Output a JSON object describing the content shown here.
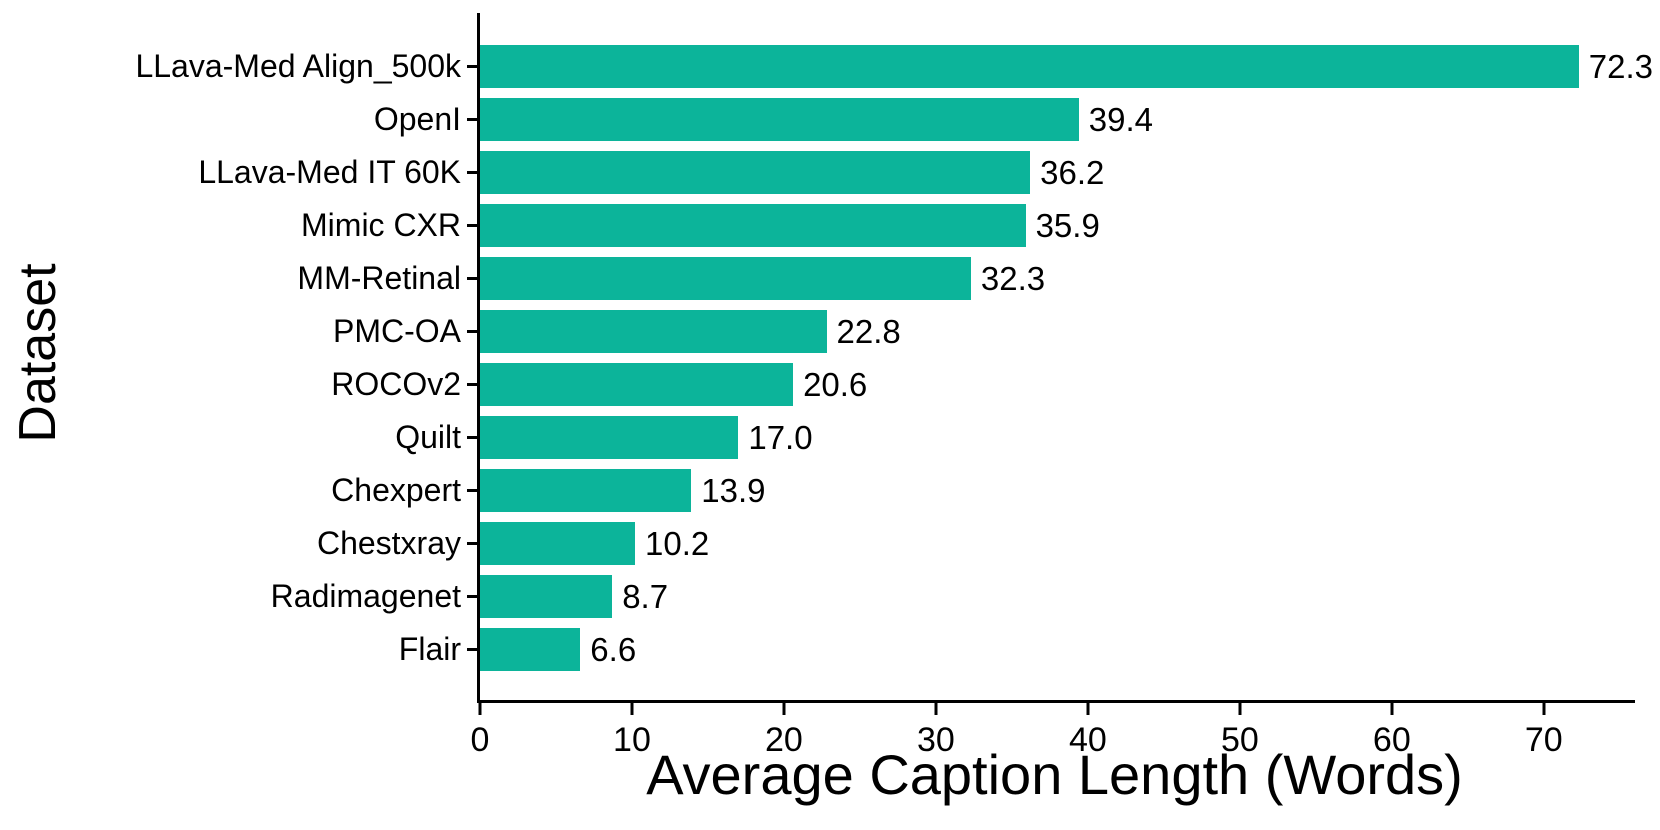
{
  "figure": {
    "background": "#ffffff"
  },
  "chart_data": {
    "type": "bar",
    "orientation": "horizontal",
    "title": "",
    "xlabel": "Average Caption Length (Words)",
    "ylabel": "Dataset",
    "categories": [
      "LLava-Med Align_500k",
      "OpenI",
      "LLava-Med IT 60K",
      "Mimic CXR",
      "MM-Retinal",
      "PMC-OA",
      "ROCOv2",
      "Quilt",
      "Chexpert",
      "Chestxray",
      "Radimagenet",
      "Flair"
    ],
    "values": [
      72.3,
      39.4,
      36.2,
      35.9,
      32.3,
      22.8,
      20.6,
      17.0,
      13.9,
      10.2,
      8.7,
      6.6
    ],
    "value_labels": [
      "72.3",
      "39.4",
      "36.2",
      "35.9",
      "32.3",
      "22.8",
      "20.6",
      "17.0",
      "13.9",
      "10.2",
      "8.7",
      "6.6"
    ],
    "xticks": [
      0,
      10,
      20,
      30,
      40,
      50,
      60,
      70
    ],
    "xtick_labels": [
      "0",
      "10",
      "20",
      "30",
      "40",
      "50",
      "60",
      "70"
    ],
    "xlim": [
      0,
      76
    ],
    "bar_color": "#0cb49a",
    "axis_color": "#000000",
    "text_color": "#000000",
    "grid": false,
    "legend": "none"
  }
}
